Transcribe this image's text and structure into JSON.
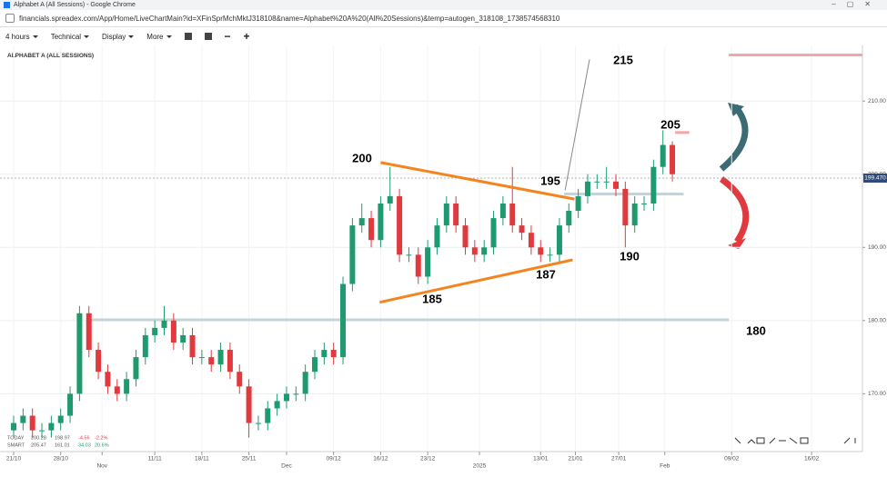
{
  "window": {
    "title": "Alphabet A (All Sessions) - Google Chrome",
    "url": "financials.spreadex.com/App/Home/LiveChartMain?id=XFinSprMchMktJ318108&name=Alphabet%20A%20(All%20Sessions)&temp=autogen_318108_1738574568310"
  },
  "toolbar": [
    "4 hours",
    "Technical",
    "Display",
    "More"
  ],
  "chart_data": {
    "type": "candlestick",
    "title": "ALPHABET A (ALL SESSIONS)",
    "x": [
      0,
      1,
      2,
      3,
      4,
      5,
      6,
      7,
      8,
      9,
      10,
      11,
      12,
      13,
      14,
      15,
      16,
      17,
      18,
      19,
      20,
      21,
      22,
      23,
      24,
      25,
      26,
      27,
      28,
      29,
      30,
      31,
      32,
      33,
      34,
      35,
      36,
      37,
      38,
      39,
      40,
      41,
      42,
      43,
      44,
      45,
      46,
      47,
      48,
      49,
      50,
      51,
      52,
      53,
      54,
      55,
      56,
      57,
      58,
      59,
      60,
      61,
      62,
      63,
      64,
      65,
      66,
      67,
      68,
      69,
      70
    ],
    "open": [
      165,
      166,
      167,
      165,
      165,
      166,
      167,
      170,
      181,
      176,
      173,
      171,
      170,
      172,
      175,
      178,
      179,
      180,
      177,
      178,
      175,
      175,
      174,
      176,
      173,
      171,
      166,
      166,
      168,
      169,
      170,
      170,
      173,
      175,
      176,
      175,
      185,
      193,
      194,
      191,
      196,
      197,
      189,
      189,
      186,
      190,
      193,
      196,
      193,
      190,
      189,
      190,
      194,
      196,
      193,
      192,
      190,
      189,
      189,
      193,
      195,
      197,
      199,
      199,
      199,
      198,
      193,
      196,
      196,
      201,
      204
    ],
    "high": [
      167,
      168,
      168,
      166,
      167,
      168,
      171,
      182,
      182,
      177,
      174,
      172,
      173,
      176,
      179,
      180,
      182,
      181,
      179,
      179,
      176,
      176,
      177,
      177,
      174,
      172,
      167,
      169,
      170,
      171,
      171,
      174,
      176,
      177,
      177,
      186,
      194,
      196,
      195,
      197,
      201,
      198,
      190,
      190,
      191,
      194,
      197,
      197,
      194,
      191,
      191,
      195,
      197,
      201,
      194,
      193,
      191,
      190,
      194,
      196,
      198,
      200,
      200,
      201,
      200,
      199,
      197,
      197,
      202,
      206,
      204.5
    ],
    "low": [
      164,
      165,
      164,
      164,
      164,
      165,
      166,
      169,
      175,
      172,
      170,
      169,
      169,
      171,
      174,
      177,
      178,
      176,
      176,
      174,
      174,
      173,
      173,
      172,
      170,
      164,
      165,
      165,
      167,
      168,
      169,
      169,
      172,
      174,
      174,
      174,
      184,
      192,
      190,
      190,
      195,
      188,
      188,
      185,
      185,
      189,
      192,
      192,
      189,
      188,
      188,
      189,
      193,
      192,
      191,
      189,
      188,
      188,
      188,
      192,
      194,
      196,
      198,
      198,
      197,
      190,
      192,
      195,
      195,
      200,
      199
    ],
    "close": [
      166,
      167,
      165,
      165,
      166,
      167,
      170,
      181,
      176,
      173,
      171,
      170,
      172,
      175,
      178,
      179,
      180,
      177,
      178,
      175,
      175,
      174,
      176,
      173,
      171,
      166,
      166,
      168,
      169,
      170,
      170,
      173,
      175,
      176,
      175,
      185,
      193,
      194,
      191,
      196,
      197,
      189,
      189,
      186,
      190,
      193,
      196,
      193,
      190,
      189,
      190,
      194,
      196,
      193,
      192,
      190,
      189,
      189,
      193,
      195,
      197,
      199,
      199,
      199,
      198,
      193,
      196,
      196,
      201,
      204,
      200
    ],
    "up_color": "#1f9a6e",
    "down_color": "#e0393e",
    "xlim": [
      -1.45,
      90.2
    ],
    "ylim": [
      162.1,
      217.6
    ],
    "xticks": [
      {
        "value": 0,
        "label": "21/10"
      },
      {
        "value": 5,
        "label": "28/10"
      },
      {
        "value": 9.4,
        "label": "Nov"
      },
      {
        "value": 15,
        "label": "11/11"
      },
      {
        "value": 20,
        "label": "18/11"
      },
      {
        "value": 25,
        "label": "25/11"
      },
      {
        "value": 29,
        "label": "Dec"
      },
      {
        "value": 34,
        "label": "09/12"
      },
      {
        "value": 39,
        "label": "16/12"
      },
      {
        "value": 44,
        "label": "23/12"
      },
      {
        "value": 49.5,
        "label": "2025"
      },
      {
        "value": 56,
        "label": "13/01"
      },
      {
        "value": 59.7,
        "label": "21/01"
      },
      {
        "value": 64.3,
        "label": "27/01"
      },
      {
        "value": 69.2,
        "label": "Feb"
      },
      {
        "value": 76.3,
        "label": "09/02"
      },
      {
        "value": 84.8,
        "label": "16/02"
      }
    ],
    "yticks": [
      {
        "value": 170,
        "label": "170.00"
      },
      {
        "value": 180,
        "label": "180.00"
      },
      {
        "value": 190,
        "label": "190.00"
      },
      {
        "value": 200,
        "label": "200.00"
      },
      {
        "value": 210,
        "label": "210.00"
      }
    ],
    "grid": true,
    "last_price": {
      "value": 199.47,
      "label": "199.470"
    },
    "levels": [
      {
        "y": 180.1,
        "x": [
          7.9,
          76
        ],
        "color": "#c5d3d8"
      },
      {
        "y": 197.3,
        "x": [
          58.5,
          71.2
        ],
        "color": "#c5d3d8"
      },
      {
        "y": 216.3,
        "x": [
          76,
          90.2
        ],
        "color": "#f4a6a6"
      },
      {
        "y": 205.7,
        "x": [
          70.3,
          71.8
        ],
        "color": "#f4a6a6"
      }
    ],
    "trendlines": [
      {
        "x": [
          39,
          59.6
        ],
        "y": [
          201.6,
          196.6
        ],
        "color": "#f5841f"
      },
      {
        "x": [
          38.9,
          59.4
        ],
        "y": [
          182.5,
          188.3
        ],
        "color": "#f5841f"
      }
    ],
    "leader_line": {
      "x": [
        58.6,
        61.2
      ],
      "y": [
        197.8,
        215.7
      ],
      "color": "#888888"
    },
    "annotations": [
      "215",
      "205",
      "200",
      "195",
      "190",
      "187",
      "185",
      "180"
    ],
    "info": [
      [
        "TODAY",
        "200.28",
        "198.97",
        "-4.56",
        "-2.2%"
      ],
      [
        "SMART",
        "205.47",
        "161.01",
        "34.03",
        "20.6%"
      ]
    ]
  }
}
